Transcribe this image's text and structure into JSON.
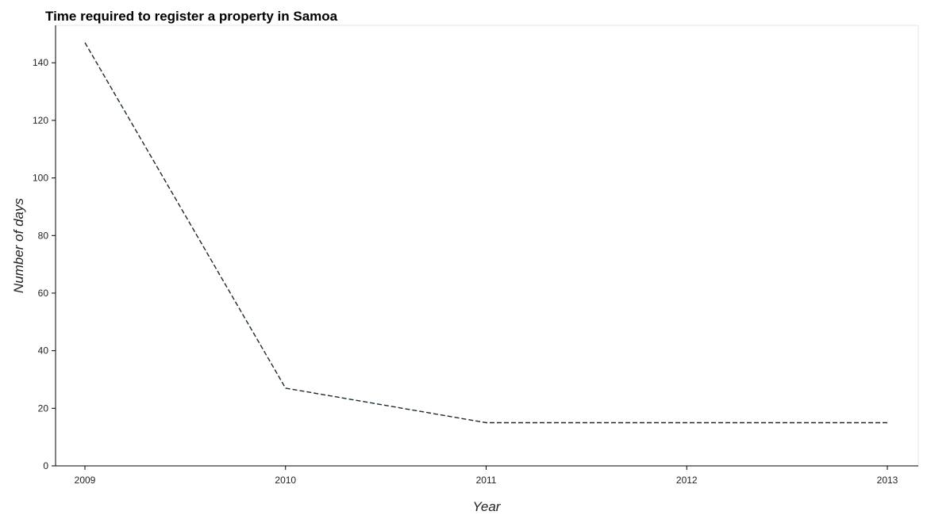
{
  "chart_data": {
    "type": "line",
    "title": "Time required to register a property in Samoa",
    "xlabel": "Year",
    "ylabel": "Number of days",
    "categories": [
      "2009",
      "2010",
      "2011",
      "2012",
      "2013"
    ],
    "series": [
      {
        "values": [
          147,
          27,
          15,
          15,
          15
        ],
        "color": "#1a2a33",
        "style": "dashed"
      }
    ],
    "yticks": [
      0,
      20,
      40,
      60,
      80,
      100,
      120,
      140
    ],
    "ylim": [
      0,
      153
    ],
    "grid": false,
    "legend": "none"
  }
}
